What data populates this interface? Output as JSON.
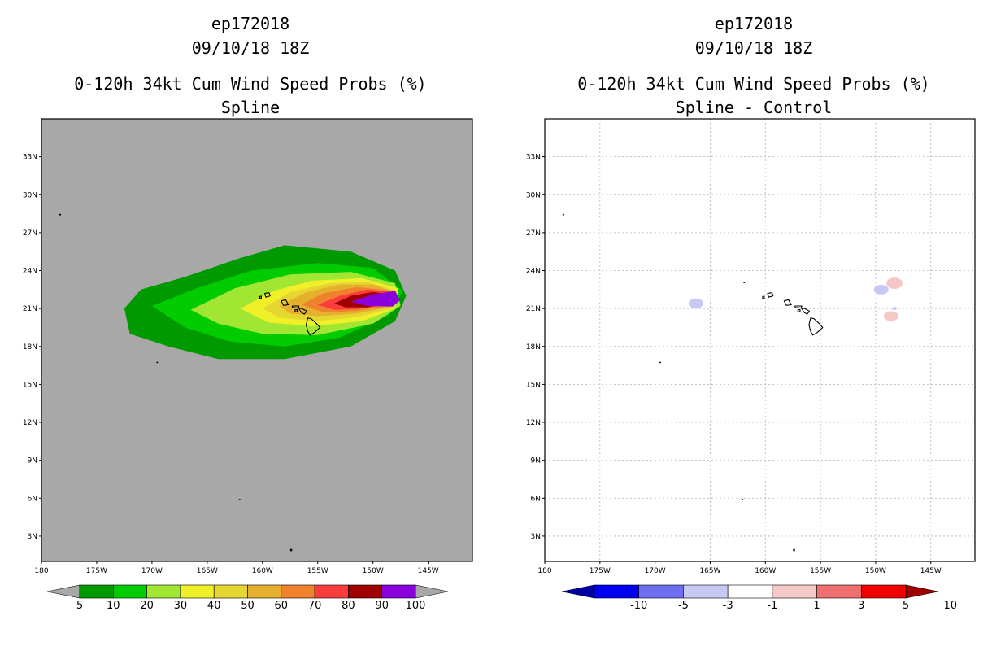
{
  "chart_data": [
    {
      "type": "heatmap",
      "storm_id": "ep172018",
      "datetime": "09/10/18 18Z",
      "title": "0-120h 34kt Cum Wind Speed Probs (%)",
      "subtitle": "Spline",
      "x_ticks": [
        "180",
        "175W",
        "170W",
        "165W",
        "160W",
        "155W",
        "150W",
        "145W"
      ],
      "y_ticks": [
        "33N",
        "30N",
        "27N",
        "24N",
        "21N",
        "18N",
        "15N",
        "12N",
        "9N",
        "6N",
        "3N"
      ],
      "xlim": [
        -180,
        -141
      ],
      "ylim": [
        1,
        36
      ],
      "grid": false,
      "background": "#a8a8a8",
      "colorbar": {
        "labels": [
          "5",
          "10",
          "20",
          "30",
          "40",
          "50",
          "60",
          "70",
          "80",
          "90",
          "100"
        ],
        "colors": [
          "#009a00",
          "#00cc00",
          "#a0e632",
          "#f0f028",
          "#e6d632",
          "#e6af2d",
          "#f0822d",
          "#fa3c3c",
          "#a00000",
          "#8a00dc"
        ],
        "extend_color": "#a8a8a8"
      },
      "contours": [
        {
          "level": 5,
          "color": "#009a00",
          "points": [
            [
              -172.5,
              21.0
            ],
            [
              -171.0,
              22.5
            ],
            [
              -167.0,
              23.5
            ],
            [
              -162.0,
              25.0
            ],
            [
              -158.0,
              26.0
            ],
            [
              -152.0,
              25.5
            ],
            [
              -148.0,
              24.0
            ],
            [
              -147.0,
              22.0
            ],
            [
              -148.0,
              20.0
            ],
            [
              -152.0,
              18.0
            ],
            [
              -158.0,
              17.0
            ],
            [
              -164.0,
              17.0
            ],
            [
              -168.5,
              18.0
            ],
            [
              -172.0,
              19.0
            ]
          ]
        },
        {
          "level": 10,
          "color": "#00cc00",
          "points": [
            [
              -170.0,
              21.2
            ],
            [
              -166.0,
              22.6
            ],
            [
              -161.0,
              24.0
            ],
            [
              -155.0,
              24.6
            ],
            [
              -150.0,
              24.2
            ],
            [
              -147.3,
              22.4
            ],
            [
              -148.5,
              20.5
            ],
            [
              -153.0,
              18.7
            ],
            [
              -158.0,
              18.0
            ],
            [
              -163.0,
              18.4
            ],
            [
              -167.0,
              19.5
            ]
          ]
        },
        {
          "level": 20,
          "color": "#a0e632",
          "points": [
            [
              -166.5,
              20.9
            ],
            [
              -162.5,
              22.6
            ],
            [
              -157.5,
              23.7
            ],
            [
              -152.0,
              23.9
            ],
            [
              -148.0,
              23.0
            ],
            [
              -147.5,
              21.2
            ],
            [
              -150.0,
              19.8
            ],
            [
              -155.0,
              18.9
            ],
            [
              -160.0,
              19.0
            ],
            [
              -164.0,
              19.8
            ]
          ]
        },
        {
          "level": 30,
          "color": "#f0f028",
          "points": [
            [
              -162.0,
              21.0
            ],
            [
              -159.0,
              22.4
            ],
            [
              -155.5,
              23.2
            ],
            [
              -151.0,
              23.4
            ],
            [
              -147.7,
              22.6
            ],
            [
              -148.0,
              21.0
            ],
            [
              -151.0,
              20.0
            ],
            [
              -155.5,
              19.6
            ],
            [
              -159.5,
              19.9
            ]
          ]
        },
        {
          "level": 40,
          "color": "#e6d632",
          "points": [
            [
              -160.0,
              21.0
            ],
            [
              -157.5,
              22.3
            ],
            [
              -154.0,
              23.0
            ],
            [
              -150.5,
              23.1
            ],
            [
              -147.8,
              22.4
            ],
            [
              -148.3,
              21.0
            ],
            [
              -151.5,
              20.3
            ],
            [
              -155.5,
              20.0
            ],
            [
              -158.5,
              20.3
            ]
          ]
        },
        {
          "level": 50,
          "color": "#e6af2d",
          "points": [
            [
              -158.5,
              21.2
            ],
            [
              -156.0,
              22.3
            ],
            [
              -153.0,
              22.9
            ],
            [
              -150.0,
              22.9
            ],
            [
              -147.8,
              22.2
            ],
            [
              -148.5,
              21.1
            ],
            [
              -151.5,
              20.6
            ],
            [
              -155.0,
              20.4
            ],
            [
              -157.5,
              20.6
            ]
          ]
        },
        {
          "level": 60,
          "color": "#f0822d",
          "points": [
            [
              -156.5,
              21.3
            ],
            [
              -154.5,
              22.2
            ],
            [
              -151.5,
              22.7
            ],
            [
              -148.0,
              22.4
            ],
            [
              -148.6,
              21.2
            ],
            [
              -151.5,
              20.8
            ],
            [
              -154.5,
              20.7
            ]
          ]
        },
        {
          "level": 70,
          "color": "#fa3c3c",
          "points": [
            [
              -155.0,
              21.3
            ],
            [
              -153.0,
              22.0
            ],
            [
              -150.5,
              22.5
            ],
            [
              -148.0,
              22.3
            ],
            [
              -148.7,
              21.3
            ],
            [
              -151.5,
              20.95
            ],
            [
              -153.5,
              20.9
            ]
          ]
        },
        {
          "level": 80,
          "color": "#a00000",
          "points": [
            [
              -153.5,
              21.4
            ],
            [
              -152.0,
              22.0
            ],
            [
              -150.0,
              22.3
            ],
            [
              -148.2,
              22.1
            ],
            [
              -148.6,
              21.4
            ],
            [
              -150.5,
              21.1
            ],
            [
              -152.5,
              21.1
            ]
          ]
        },
        {
          "level": 90,
          "color": "#8a00dc",
          "points": [
            [
              -152.0,
              21.55
            ],
            [
              -150.0,
              22.1
            ],
            [
              -148.0,
              22.4
            ],
            [
              -147.55,
              21.65
            ],
            [
              -148.2,
              21.15
            ],
            [
              -150.5,
              21.2
            ]
          ]
        }
      ]
    },
    {
      "type": "heatmap",
      "storm_id": "ep172018",
      "datetime": "09/10/18 18Z",
      "title": "0-120h 34kt Cum Wind Speed Probs (%)",
      "subtitle": "Spline - Control",
      "x_ticks": [
        "180",
        "175W",
        "170W",
        "165W",
        "160W",
        "155W",
        "150W",
        "145W"
      ],
      "y_ticks": [
        "33N",
        "30N",
        "27N",
        "24N",
        "21N",
        "18N",
        "15N",
        "12N",
        "9N",
        "6N",
        "3N"
      ],
      "xlim": [
        -180,
        -141
      ],
      "ylim": [
        1,
        36
      ],
      "grid": true,
      "background": "#ffffff",
      "colorbar": {
        "labels": [
          "-10",
          "-5",
          "-3",
          "-1",
          "1",
          "3",
          "5",
          "10"
        ],
        "colors": [
          "#0000a0",
          "#0000f0",
          "#6e6ef0",
          "#c8c8f5",
          "#ffffff",
          "#f5c8c8",
          "#f07070",
          "#f00000",
          "#a00000"
        ],
        "extend_left": "#0000a0",
        "extend_right": "#a00000"
      },
      "anomalies": [
        {
          "lon": -148.3,
          "lat": 23.0,
          "value": 5,
          "color": "#f07070"
        },
        {
          "lon": -148.3,
          "lat": 23.0,
          "value": 3,
          "color": "#f5c8c8"
        },
        {
          "lon": -148.6,
          "lat": 20.4,
          "value": 3,
          "color": "#f5c8c8"
        },
        {
          "lon": -149.5,
          "lat": 22.5,
          "value": -3,
          "color": "#c8c8f5"
        },
        {
          "lon": -166.3,
          "lat": 21.4,
          "value": -3,
          "color": "#c8c8f5"
        },
        {
          "lon": -148.3,
          "lat": 21.0,
          "value": -1,
          "color": "#c8c8f5"
        }
      ]
    }
  ],
  "islands": [
    {
      "name": "Kauai",
      "points": [
        [
          -159.8,
          22.2
        ],
        [
          -159.4,
          22.25
        ],
        [
          -159.3,
          22.0
        ],
        [
          -159.7,
          21.9
        ]
      ]
    },
    {
      "name": "Niihau",
      "points": [
        [
          -160.25,
          21.95
        ],
        [
          -160.1,
          21.98
        ],
        [
          -160.1,
          21.8
        ],
        [
          -160.25,
          21.8
        ]
      ]
    },
    {
      "name": "Oahu",
      "points": [
        [
          -158.3,
          21.6
        ],
        [
          -157.9,
          21.7
        ],
        [
          -157.65,
          21.3
        ],
        [
          -158.1,
          21.25
        ]
      ]
    },
    {
      "name": "Molokai",
      "points": [
        [
          -157.3,
          21.2
        ],
        [
          -156.7,
          21.2
        ],
        [
          -156.75,
          21.05
        ],
        [
          -157.3,
          21.08
        ]
      ]
    },
    {
      "name": "Lanai",
      "points": [
        [
          -157.05,
          20.9
        ],
        [
          -156.85,
          20.92
        ],
        [
          -156.85,
          20.75
        ],
        [
          -157.05,
          20.75
        ]
      ]
    },
    {
      "name": "Maui",
      "points": [
        [
          -156.7,
          21.0
        ],
        [
          -156.45,
          21.0
        ],
        [
          -156.0,
          20.8
        ],
        [
          -156.2,
          20.55
        ],
        [
          -156.5,
          20.7
        ]
      ]
    },
    {
      "name": "Big Island",
      "points": [
        [
          -155.9,
          20.25
        ],
        [
          -155.6,
          20.2
        ],
        [
          -155.1,
          19.8
        ],
        [
          -154.8,
          19.5
        ],
        [
          -155.3,
          19.1
        ],
        [
          -155.7,
          18.9
        ],
        [
          -155.9,
          19.2
        ],
        [
          -156.05,
          19.7
        ]
      ]
    },
    {
      "name": "Nihoa",
      "points": [
        [
          -161.95,
          23.08
        ],
        [
          -161.88,
          23.08
        ],
        [
          -161.88,
          23.05
        ],
        [
          -161.95,
          23.05
        ]
      ]
    },
    {
      "name": "Kure",
      "points": [
        [
          -178.35,
          28.45
        ],
        [
          -178.28,
          28.45
        ],
        [
          -178.28,
          28.4
        ],
        [
          -178.35,
          28.4
        ]
      ]
    },
    {
      "name": "Johnston",
      "points": [
        [
          -169.55,
          16.75
        ],
        [
          -169.5,
          16.75
        ],
        [
          -169.5,
          16.72
        ],
        [
          -169.55,
          16.72
        ]
      ]
    },
    {
      "name": "Palmyra",
      "points": [
        [
          -162.1,
          5.9
        ],
        [
          -162.03,
          5.9
        ],
        [
          -162.03,
          5.86
        ],
        [
          -162.1,
          5.86
        ]
      ]
    },
    {
      "name": "Kiritimati",
      "points": [
        [
          -157.45,
          1.95
        ],
        [
          -157.35,
          1.95
        ],
        [
          -157.35,
          1.85
        ],
        [
          -157.45,
          1.85
        ]
      ]
    }
  ]
}
